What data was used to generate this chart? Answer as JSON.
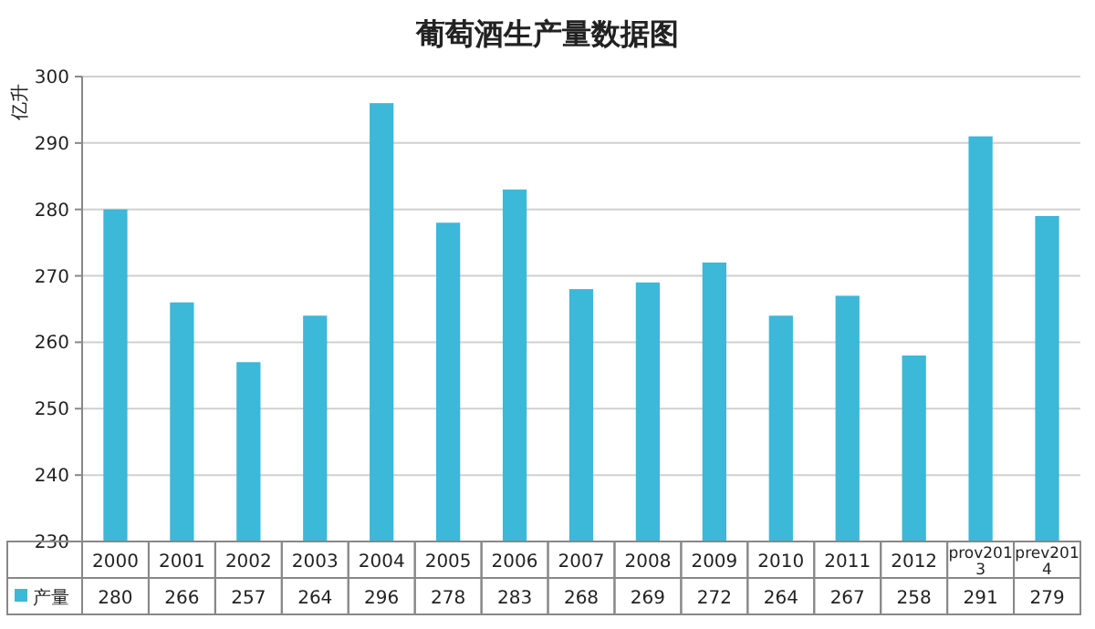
{
  "chart_data": {
    "type": "bar",
    "title": "葡萄酒生产量数据图",
    "ylabel": "亿升",
    "categories": [
      "2000",
      "2001",
      "2002",
      "2003",
      "2004",
      "2005",
      "2006",
      "2007",
      "2008",
      "2009",
      "2010",
      "2011",
      "2012",
      "prov2013",
      "prev2014"
    ],
    "series": [
      {
        "name": "产量",
        "color": "#3cb8d8",
        "values": [
          280,
          266,
          257,
          264,
          296,
          278,
          283,
          268,
          269,
          272,
          264,
          267,
          258,
          291,
          279
        ]
      }
    ],
    "ylim": [
      230,
      300
    ],
    "yticks": [
      230,
      240,
      250,
      260,
      270,
      280,
      290,
      300
    ],
    "grid": "y",
    "legend": "bottom",
    "data_labels": true
  }
}
